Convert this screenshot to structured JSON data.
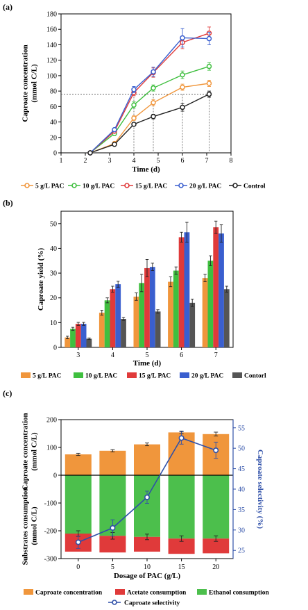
{
  "chart_data": [
    {
      "panel": "(a)",
      "type": "line",
      "xlabel": "Time (d)",
      "ylabel": "Caproate concentration\n(mmol C/L)",
      "xlim": [
        1,
        8
      ],
      "ylim": [
        0,
        180
      ],
      "xticks": [
        1,
        2,
        3,
        4,
        5,
        6,
        7,
        8
      ],
      "yticks": [
        0,
        20,
        40,
        60,
        80,
        100,
        120,
        140,
        160,
        180
      ],
      "x": [
        2.2,
        3.2,
        4.0,
        4.8,
        6.0,
        7.1
      ],
      "series": [
        {
          "name": "5 g/L PAC",
          "color": "#f0963c",
          "values": [
            0,
            12,
            45,
            65,
            85,
            90
          ],
          "errors": [
            1,
            1.5,
            3,
            4,
            4,
            4
          ]
        },
        {
          "name": "10 g/L PAC",
          "color": "#3fbf3f",
          "values": [
            0,
            25,
            62,
            84,
            101,
            112
          ],
          "errors": [
            1,
            2,
            4,
            4,
            5,
            5
          ]
        },
        {
          "name": "15 g/L PAC",
          "color": "#e03a3a",
          "values": [
            0,
            28,
            78,
            104,
            143,
            155
          ],
          "errors": [
            1,
            2,
            4,
            6,
            8,
            8
          ]
        },
        {
          "name": "20 g/L PAC",
          "color": "#3a5fcf",
          "values": [
            0,
            30,
            82,
            105,
            149,
            148
          ],
          "errors": [
            1,
            2,
            4,
            6,
            12,
            8
          ]
        },
        {
          "name": "Control",
          "color": "#222222",
          "values": [
            0,
            11,
            37,
            47,
            59,
            76
          ],
          "errors": [
            1,
            1,
            2,
            3,
            5,
            4
          ]
        }
      ],
      "reference_line_y": 76,
      "legend": "bottom"
    },
    {
      "panel": "(b)",
      "type": "bar",
      "xlabel": "Time (d)",
      "ylabel": "Caproate yield (%)",
      "categories": [
        "3",
        "4",
        "5",
        "6",
        "7"
      ],
      "ylim": [
        0,
        55
      ],
      "yticks": [
        0,
        10,
        20,
        30,
        40,
        50
      ],
      "series": [
        {
          "name": "5 g/L  PAC",
          "color": "#f0963c",
          "values": [
            4,
            14,
            20.5,
            26.5,
            28
          ],
          "errors": [
            0.5,
            1,
            1.5,
            2,
            1.5
          ]
        },
        {
          "name": "10 g/L PAC",
          "color": "#3fbf3f",
          "values": [
            7.5,
            19,
            26,
            31,
            35
          ],
          "errors": [
            0.6,
            1,
            3.5,
            1.5,
            2
          ]
        },
        {
          "name": "15 g/L PAC",
          "color": "#e03a3a",
          "values": [
            9.5,
            23.5,
            32,
            44.5,
            48.5
          ],
          "errors": [
            0.6,
            1.2,
            3.5,
            2,
            2.5
          ]
        },
        {
          "name": "20 g/L PAC",
          "color": "#3a5fcf",
          "values": [
            9.5,
            25.5,
            32.5,
            46.5,
            46
          ],
          "errors": [
            0.6,
            1.2,
            1.5,
            4,
            3.5
          ]
        },
        {
          "name": "Contorl",
          "color": "#555555",
          "values": [
            3.5,
            11.5,
            14.5,
            18,
            23.5
          ],
          "errors": [
            0.3,
            0.6,
            0.7,
            1.5,
            1.2
          ]
        }
      ],
      "legend": "bottom"
    },
    {
      "panel": "(c)",
      "type": "bar",
      "xlabel": "Dosage of PAC (g/L)",
      "ylabel_left_top": "Caproate concentration\n(mmol C/L)",
      "ylabel_left_bottom": "Substrates consumption\n(mmol C/L)",
      "ylabel_right": "Caproate selectivity (%)",
      "categories": [
        "0",
        "5",
        "10",
        "15",
        "20"
      ],
      "ylim": [
        -300,
        200
      ],
      "yticks": [
        -300,
        -200,
        -100,
        0,
        100,
        200
      ],
      "ylim_right": [
        23,
        57
      ],
      "yticks_right": [
        25,
        30,
        35,
        40,
        45,
        50,
        55
      ],
      "series": [
        {
          "name": "Caproate concentration",
          "color": "#f0963c",
          "values": [
            75,
            88,
            111,
            154,
            148
          ],
          "errors": [
            4,
            4,
            5,
            5,
            7
          ]
        },
        {
          "name": "Acetate consumption",
          "color": "#e03a3a",
          "values": [
            -65,
            -60,
            -53,
            -55,
            -53
          ],
          "errors": [
            0,
            0,
            0,
            0,
            0
          ]
        },
        {
          "name": "Ethanol consumption",
          "color": "#4cbf4c",
          "values": [
            -210,
            -218,
            -222,
            -228,
            -228
          ],
          "errors": [
            10,
            12,
            10,
            10,
            10
          ]
        },
        {
          "name": "Caproate selectivity",
          "color": "#2e4fa8",
          "axis": "right",
          "values": [
            27,
            30.5,
            38,
            52.5,
            49.5
          ],
          "errors": [
            1.5,
            2,
            1.5,
            1.5,
            2
          ]
        }
      ],
      "legend": "bottom"
    }
  ]
}
